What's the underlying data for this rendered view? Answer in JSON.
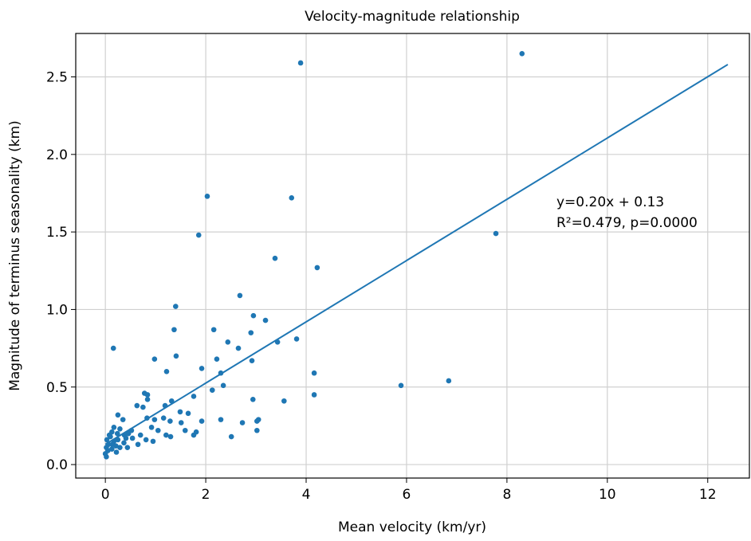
{
  "chart_data": {
    "type": "scatter",
    "title": "Velocity-magnitude relationship",
    "xlabel": "Mean velocity (km/yr)",
    "ylabel": "Magnitude of terminus seasonality (km)",
    "xlim": [
      -0.59,
      12.83
    ],
    "ylim": [
      -0.087,
      2.78
    ],
    "xticks": [
      0,
      2,
      4,
      6,
      8,
      10,
      12
    ],
    "yticks": [
      {
        "value": 0,
        "label": "0.0"
      },
      0.5,
      {
        "value": 1,
        "label": "1.0"
      },
      1.5,
      {
        "value": 2,
        "label": "2.0"
      },
      2.5
    ],
    "grid": true,
    "points": {
      "color": "#1f77b4",
      "x": [
        8.3,
        3.89,
        2.03,
        3.71,
        1.86,
        7.78,
        3.38,
        4.22,
        2.68,
        1.4,
        2.95,
        3.19,
        0.16,
        2.16,
        1.37,
        2.9,
        3.81,
        3.43,
        2.44,
        2.65,
        1.41,
        0.98,
        2.22,
        2.92,
        1.92,
        1.22,
        2.3,
        4.16,
        6.84,
        5.89,
        2.35,
        2.13,
        1.76,
        4.16,
        0.78,
        0.84,
        3.56,
        1.32,
        2.94,
        0.84,
        1.19,
        1.65,
        1.49,
        0.75,
        0.63,
        0.25,
        0.35,
        3.02,
        3.05,
        2.3,
        1.92,
        2.73,
        2.51,
        3.02,
        0.83,
        0.98,
        1.16,
        1.29,
        1.51,
        0.92,
        1.05,
        1.3,
        1.21,
        1.59,
        1.81,
        1.76,
        0.52,
        0.7,
        0.81,
        0.95,
        0.54,
        0.65,
        0.41,
        0.46,
        0.29,
        0.17,
        0.13,
        0.24,
        0.1,
        0.17,
        0.03,
        0.06,
        0.02,
        0.05,
        0.0,
        0.02,
        0.13,
        0.22,
        0.29,
        0.37,
        0.44,
        0.14,
        0.25,
        0.38,
        0.08,
        0.21
      ],
      "y": [
        2.65,
        2.59,
        1.73,
        1.72,
        1.48,
        1.49,
        1.33,
        1.27,
        1.09,
        1.02,
        0.96,
        0.93,
        0.75,
        0.87,
        0.87,
        0.85,
        0.81,
        0.79,
        0.79,
        0.75,
        0.7,
        0.68,
        0.68,
        0.67,
        0.62,
        0.6,
        0.59,
        0.59,
        0.54,
        0.51,
        0.51,
        0.48,
        0.44,
        0.45,
        0.46,
        0.45,
        0.41,
        0.41,
        0.42,
        0.42,
        0.38,
        0.33,
        0.34,
        0.37,
        0.38,
        0.32,
        0.29,
        0.28,
        0.29,
        0.29,
        0.28,
        0.27,
        0.18,
        0.22,
        0.3,
        0.29,
        0.3,
        0.28,
        0.27,
        0.24,
        0.22,
        0.18,
        0.19,
        0.22,
        0.21,
        0.19,
        0.22,
        0.19,
        0.16,
        0.15,
        0.17,
        0.13,
        0.17,
        0.2,
        0.23,
        0.24,
        0.21,
        0.2,
        0.18,
        0.15,
        0.16,
        0.13,
        0.11,
        0.09,
        0.07,
        0.05,
        0.1,
        0.08,
        0.11,
        0.14,
        0.11,
        0.13,
        0.16,
        0.19,
        0.19,
        0.12
      ]
    },
    "fit_line": {
      "color": "#1f77b4",
      "x": [
        0,
        12.4
      ],
      "y": [
        0.13,
        2.58
      ]
    },
    "annotation": [
      "y=0.20x + 0.13",
      "R²=0.479, p=0.0000"
    ]
  }
}
